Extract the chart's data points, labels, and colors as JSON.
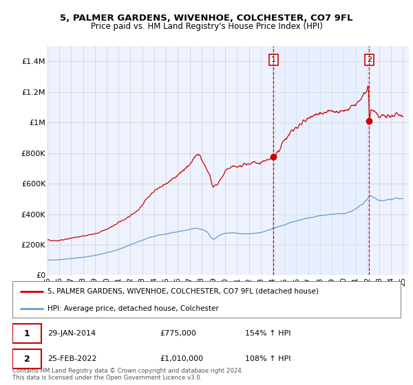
{
  "title": "5, PALMER GARDENS, WIVENHOE, COLCHESTER, CO7 9FL",
  "subtitle": "Price paid vs. HM Land Registry's House Price Index (HPI)",
  "ylim": [
    0,
    1500000
  ],
  "xlim_start": 1995.0,
  "xlim_end": 2025.5,
  "yticks": [
    0,
    200000,
    400000,
    600000,
    800000,
    1000000,
    1200000,
    1400000
  ],
  "ytick_labels": [
    "£0",
    "£200K",
    "£400K",
    "£600K",
    "£800K",
    "£1M",
    "£1.2M",
    "£1.4M"
  ],
  "xtick_years": [
    1995,
    1996,
    1997,
    1998,
    1999,
    2000,
    2001,
    2002,
    2003,
    2004,
    2005,
    2006,
    2007,
    2008,
    2009,
    2010,
    2011,
    2012,
    2013,
    2014,
    2015,
    2016,
    2017,
    2018,
    2019,
    2020,
    2021,
    2022,
    2023,
    2024,
    2025
  ],
  "xtick_labels": [
    "95",
    "96",
    "97",
    "98",
    "99",
    "00",
    "01",
    "02",
    "03",
    "04",
    "05",
    "06",
    "07",
    "08",
    "09",
    "10",
    "11",
    "12",
    "13",
    "14",
    "15",
    "16",
    "17",
    "18",
    "19",
    "20",
    "21",
    "22",
    "23",
    "24",
    "25"
  ],
  "sale1_x": 2014.08,
  "sale1_y": 775000,
  "sale2_x": 2022.15,
  "sale2_y": 1010000,
  "shade_color": "#ddeeff",
  "line_color_red": "#cc0000",
  "line_color_blue": "#6699cc",
  "bg_color": "#eef2ff",
  "grid_color": "#cccccc",
  "vline_color": "#dd0000",
  "legend_line1": "5, PALMER GARDENS, WIVENHOE, COLCHESTER, CO7 9FL (detached house)",
  "legend_line2": "HPI: Average price, detached house, Colchester",
  "table_row1": [
    "1",
    "29-JAN-2014",
    "£775,000",
    "154% ↑ HPI"
  ],
  "table_row2": [
    "2",
    "25-FEB-2022",
    "£1,010,000",
    "108% ↑ HPI"
  ],
  "footer1": "Contains HM Land Registry data © Crown copyright and database right 2024.",
  "footer2": "This data is licensed under the Open Government Licence v3.0."
}
